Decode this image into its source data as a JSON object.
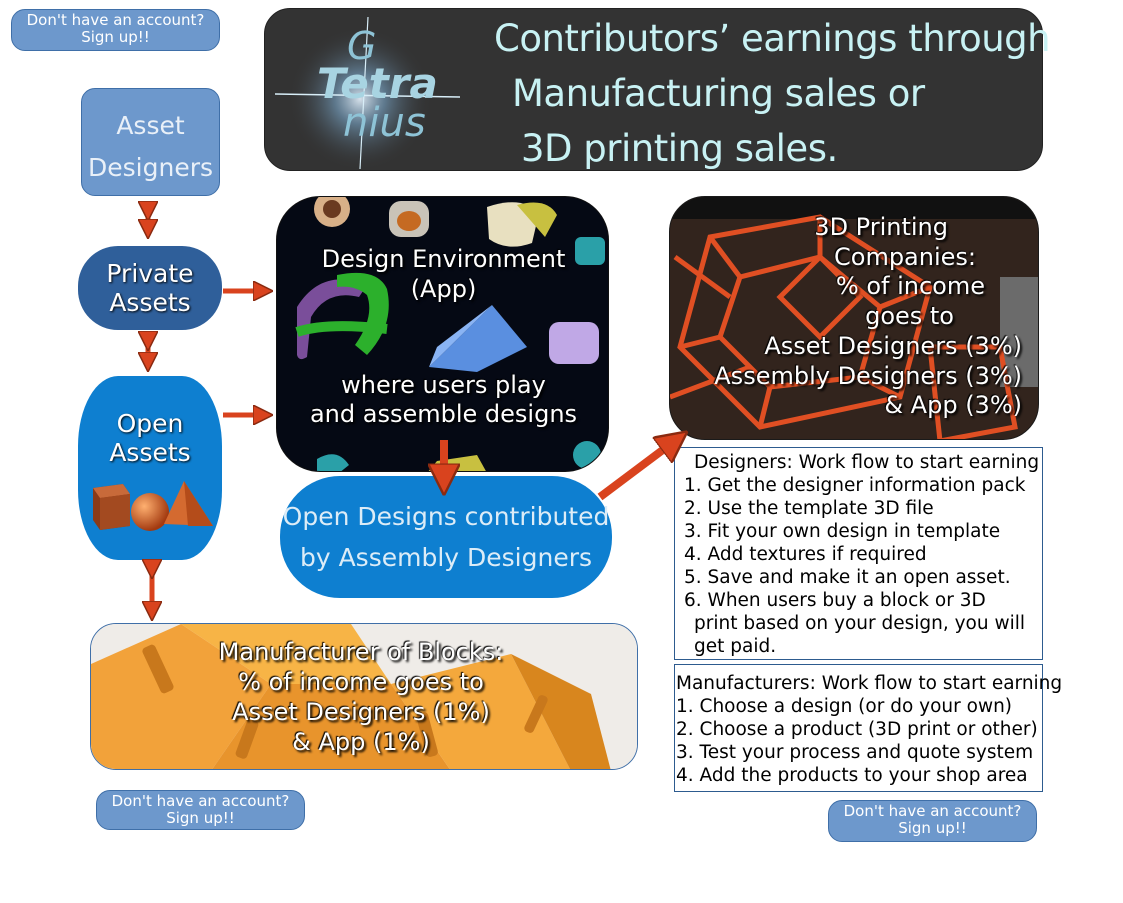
{
  "signup": {
    "line1": "Don't have an account?",
    "line2": "Sign up!!"
  },
  "banner": {
    "logo_line1": "G",
    "logo_line2": "Tetra",
    "logo_line3": "nius",
    "line1": "Contributors’ earnings through",
    "line2": "Manufacturing sales or",
    "line3": "3D printing sales."
  },
  "asset_designers": {
    "line1": "Asset",
    "line2": "Designers"
  },
  "private_assets": {
    "line1": "Private",
    "line2": "Assets"
  },
  "open_assets": {
    "line1": "Open",
    "line2": "Assets"
  },
  "design_env": {
    "title1": "Design Environment",
    "title2": "(App)",
    "sub1": "where users play",
    "sub2": "and assemble designs"
  },
  "open_designs": {
    "line1": "Open Designs contributed",
    "line2": "by Assembly Designers"
  },
  "printing": {
    "lines": [
      "3D Printing",
      "Companies:",
      "% of income",
      "goes to",
      "Asset Designers (3%)",
      "Assembly Designers (3%)",
      "& App (3%)"
    ]
  },
  "manufacturer": {
    "lines": [
      "Manufacturer of Blocks:",
      "% of income goes to",
      "Asset Designers (1%)",
      "& App (1%)"
    ]
  },
  "designers_flow": {
    "title": "Designers: Work flow to start earning",
    "steps": [
      "1. Get the designer information pack",
      "2. Use the template 3D file",
      "3. Fit your own design in template",
      "4. Add textures if required",
      "5. Save and make it an open asset.",
      "6. When users buy a block or 3D",
      "print based on your design, you will",
      "get paid."
    ]
  },
  "manufacturers_flow": {
    "title": "Manufacturers: Work flow to start earning",
    "steps": [
      "1. Choose a design (or do your own)",
      "2. Choose a product (3D print or other)",
      "3. Test your process and quote system",
      "4. Add the products to your shop area"
    ]
  },
  "colors": {
    "arrow": "#d9431e",
    "button_blue": "#6d98cc",
    "dark_blue": "#2f5f9a",
    "bright_blue": "#0e7fd0",
    "banner_bg": "#333333",
    "banner_text": "#c8f2f4"
  },
  "icons": [
    "double-arrow-icon",
    "arrow-right-icon",
    "arrow-down-icon",
    "diagonal-arrow-icon",
    "cube-icon",
    "sphere-icon",
    "cone-icon"
  ]
}
